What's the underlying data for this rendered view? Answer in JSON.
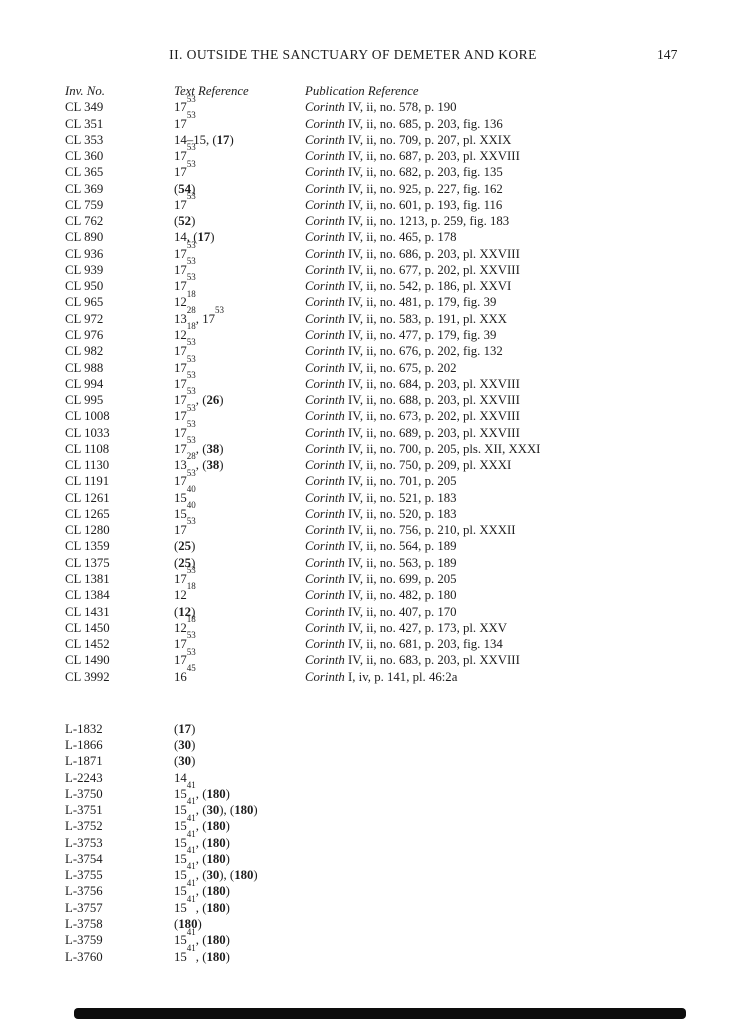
{
  "colors": {
    "background": "#ffffff",
    "text": "#1d1d1d"
  },
  "page": {
    "header": "II. OUTSIDE THE SANCTUARY OF DEMETER AND KORE",
    "page_number": "147"
  },
  "table": {
    "columns": [
      "Inv. No.",
      "Text Reference",
      "Publication Reference"
    ],
    "groups": [
      {
        "rows": [
          {
            "inv": "CL 349",
            "ref": "17^{53}",
            "pub": "*Corinth* IV, ii, no. 578, p. 190"
          },
          {
            "inv": "CL 351",
            "ref": "17^{53}",
            "pub": "*Corinth* IV, ii, no. 685, p. 203, fig. 136"
          },
          {
            "inv": "CL 353",
            "ref": "14–15, (**17**)",
            "pub": "*Corinth* IV, ii, no. 709, p. 207, pl. XXIX"
          },
          {
            "inv": "CL 360",
            "ref": "17^{53}",
            "pub": "*Corinth* IV, ii, no. 687, p. 203, pl. XXVIII"
          },
          {
            "inv": "CL 365",
            "ref": "17^{53}",
            "pub": "*Corinth* IV, ii, no. 682, p. 203, fig. 135"
          },
          {
            "inv": "CL 369",
            "ref": "(**54**)",
            "pub": "*Corinth* IV, ii, no. 925, p. 227, fig. 162"
          },
          {
            "inv": "CL 759",
            "ref": "17^{53}",
            "pub": "*Corinth* IV, ii, no. 601, p. 193, fig. 116"
          },
          {
            "inv": "CL 762",
            "ref": "(**52**)",
            "pub": "*Corinth* IV, ii, no. 1213, p. 259, fig. 183"
          },
          {
            "inv": "CL 890",
            "ref": "14, (**17**)",
            "pub": "*Corinth* IV, ii, no. 465, p. 178"
          },
          {
            "inv": "CL 936",
            "ref": "17^{53}",
            "pub": "*Corinth* IV, ii, no. 686, p. 203, pl. XXVIII"
          },
          {
            "inv": "CL 939",
            "ref": "17^{53}",
            "pub": "*Corinth* IV, ii, no. 677, p. 202, pl. XXVIII"
          },
          {
            "inv": "CL 950",
            "ref": "17^{53}",
            "pub": "*Corinth* IV, ii, no. 542, p. 186, pl. XXVI"
          },
          {
            "inv": "CL 965",
            "ref": "12^{18}",
            "pub": "*Corinth* IV, ii, no. 481, p. 179, fig. 39"
          },
          {
            "inv": "CL 972",
            "ref": "13^{28}, 17^{53}",
            "pub": "*Corinth* IV, ii, no. 583, p. 191, pl. XXX"
          },
          {
            "inv": "CL 976",
            "ref": "12^{18}",
            "pub": "*Corinth* IV, ii, no. 477, p. 179, fig. 39"
          },
          {
            "inv": "CL 982",
            "ref": "17^{53}",
            "pub": "*Corinth* IV, ii, no. 676, p. 202, fig. 132"
          },
          {
            "inv": "CL 988",
            "ref": "17^{53}",
            "pub": "*Corinth* IV, ii, no. 675, p. 202"
          },
          {
            "inv": "CL 994",
            "ref": "17^{53}",
            "pub": "*Corinth* IV, ii, no. 684, p. 203, pl. XXVIII"
          },
          {
            "inv": "CL 995",
            "ref": "17^{53}, (**26**)",
            "pub": "*Corinth* IV, ii, no. 688, p. 203, pl. XXVIII"
          },
          {
            "inv": "CL 1008",
            "ref": "17^{53}",
            "pub": "*Corinth* IV, ii, no. 673, p. 202, pl. XXVIII"
          },
          {
            "inv": "CL 1033",
            "ref": "17^{53}",
            "pub": "*Corinth* IV, ii, no. 689, p. 203, pl. XXVIII"
          },
          {
            "inv": "CL 1108",
            "ref": "17^{53}, (**38**)",
            "pub": "*Corinth* IV, ii, no. 700, p. 205, pls. XII, XXXI"
          },
          {
            "inv": "CL 1130",
            "ref": "13^{28}, (**38**)",
            "pub": "*Corinth* IV, ii, no. 750, p. 209, pl. XXXI"
          },
          {
            "inv": "CL 1191",
            "ref": "17^{53}",
            "pub": "*Corinth* IV, ii, no. 701, p. 205"
          },
          {
            "inv": "CL 1261",
            "ref": "15^{40}",
            "pub": "*Corinth* IV, ii, no. 521, p. 183"
          },
          {
            "inv": "CL 1265",
            "ref": "15^{40}",
            "pub": "*Corinth* IV, ii, no. 520, p. 183"
          },
          {
            "inv": "CL 1280",
            "ref": "17^{53}",
            "pub": "*Corinth* IV, ii, no. 756, p. 210, pl. XXXII"
          },
          {
            "inv": "CL 1359",
            "ref": "(**25**)",
            "pub": "*Corinth* IV, ii, no. 564, p. 189"
          },
          {
            "inv": "CL 1375",
            "ref": "(**25**)",
            "pub": "*Corinth* IV, ii, no. 563, p. 189"
          },
          {
            "inv": "CL 1381",
            "ref": "17^{53}",
            "pub": "*Corinth* IV, ii, no. 699, p. 205"
          },
          {
            "inv": "CL 1384",
            "ref": "12^{18}",
            "pub": "*Corinth* IV, ii, no. 482, p. 180"
          },
          {
            "inv": "CL 1431",
            "ref": "(**12**)",
            "pub": "*Corinth* IV, ii, no. 407, p. 170"
          },
          {
            "inv": "CL 1450",
            "ref": "12^{18}",
            "pub": "*Corinth* IV, ii, no. 427, p. 173, pl. XXV"
          },
          {
            "inv": "CL 1452",
            "ref": "17^{53}",
            "pub": "*Corinth* IV, ii, no. 681, p. 203, fig. 134"
          },
          {
            "inv": "CL 1490",
            "ref": "17^{53}",
            "pub": "*Corinth* IV, ii, no. 683, p. 203, pl. XXVIII"
          },
          {
            "inv": "CL 3992",
            "ref": "16^{45}",
            "pub": "*Corinth* I, iv, p. 141, pl. 46:2a"
          }
        ]
      },
      {
        "rows": [
          {
            "inv": "L-1832",
            "ref": "(**17**)",
            "pub": ""
          },
          {
            "inv": "L-1866",
            "ref": "(**30**)",
            "pub": ""
          },
          {
            "inv": "L-1871",
            "ref": "(**30**)",
            "pub": ""
          },
          {
            "inv": "L-2243",
            "ref": "14",
            "pub": ""
          },
          {
            "inv": "L-3750",
            "ref": "15^{41}, (**180**)",
            "pub": ""
          },
          {
            "inv": "L-3751",
            "ref": "15^{41}, (**30**), (**180**)",
            "pub": ""
          },
          {
            "inv": "L-3752",
            "ref": "15^{41}, (**180**)",
            "pub": ""
          },
          {
            "inv": "L-3753",
            "ref": "15^{41}, (**180**)",
            "pub": ""
          },
          {
            "inv": "L-3754",
            "ref": "15^{41}, (**180**)",
            "pub": ""
          },
          {
            "inv": "L-3755",
            "ref": "15^{41}, (**30**), (**180**)",
            "pub": ""
          },
          {
            "inv": "L-3756",
            "ref": "15^{41}, (**180**)",
            "pub": ""
          },
          {
            "inv": "L-3757",
            "ref": "15^{41}, (**180**)",
            "pub": ""
          },
          {
            "inv": "L-3758",
            "ref": "(**180**)",
            "pub": ""
          },
          {
            "inv": "L-3759",
            "ref": "15^{41}, (**180**)",
            "pub": ""
          },
          {
            "inv": "L-3760",
            "ref": "15^{41}, (**180**)",
            "pub": ""
          }
        ]
      }
    ]
  }
}
